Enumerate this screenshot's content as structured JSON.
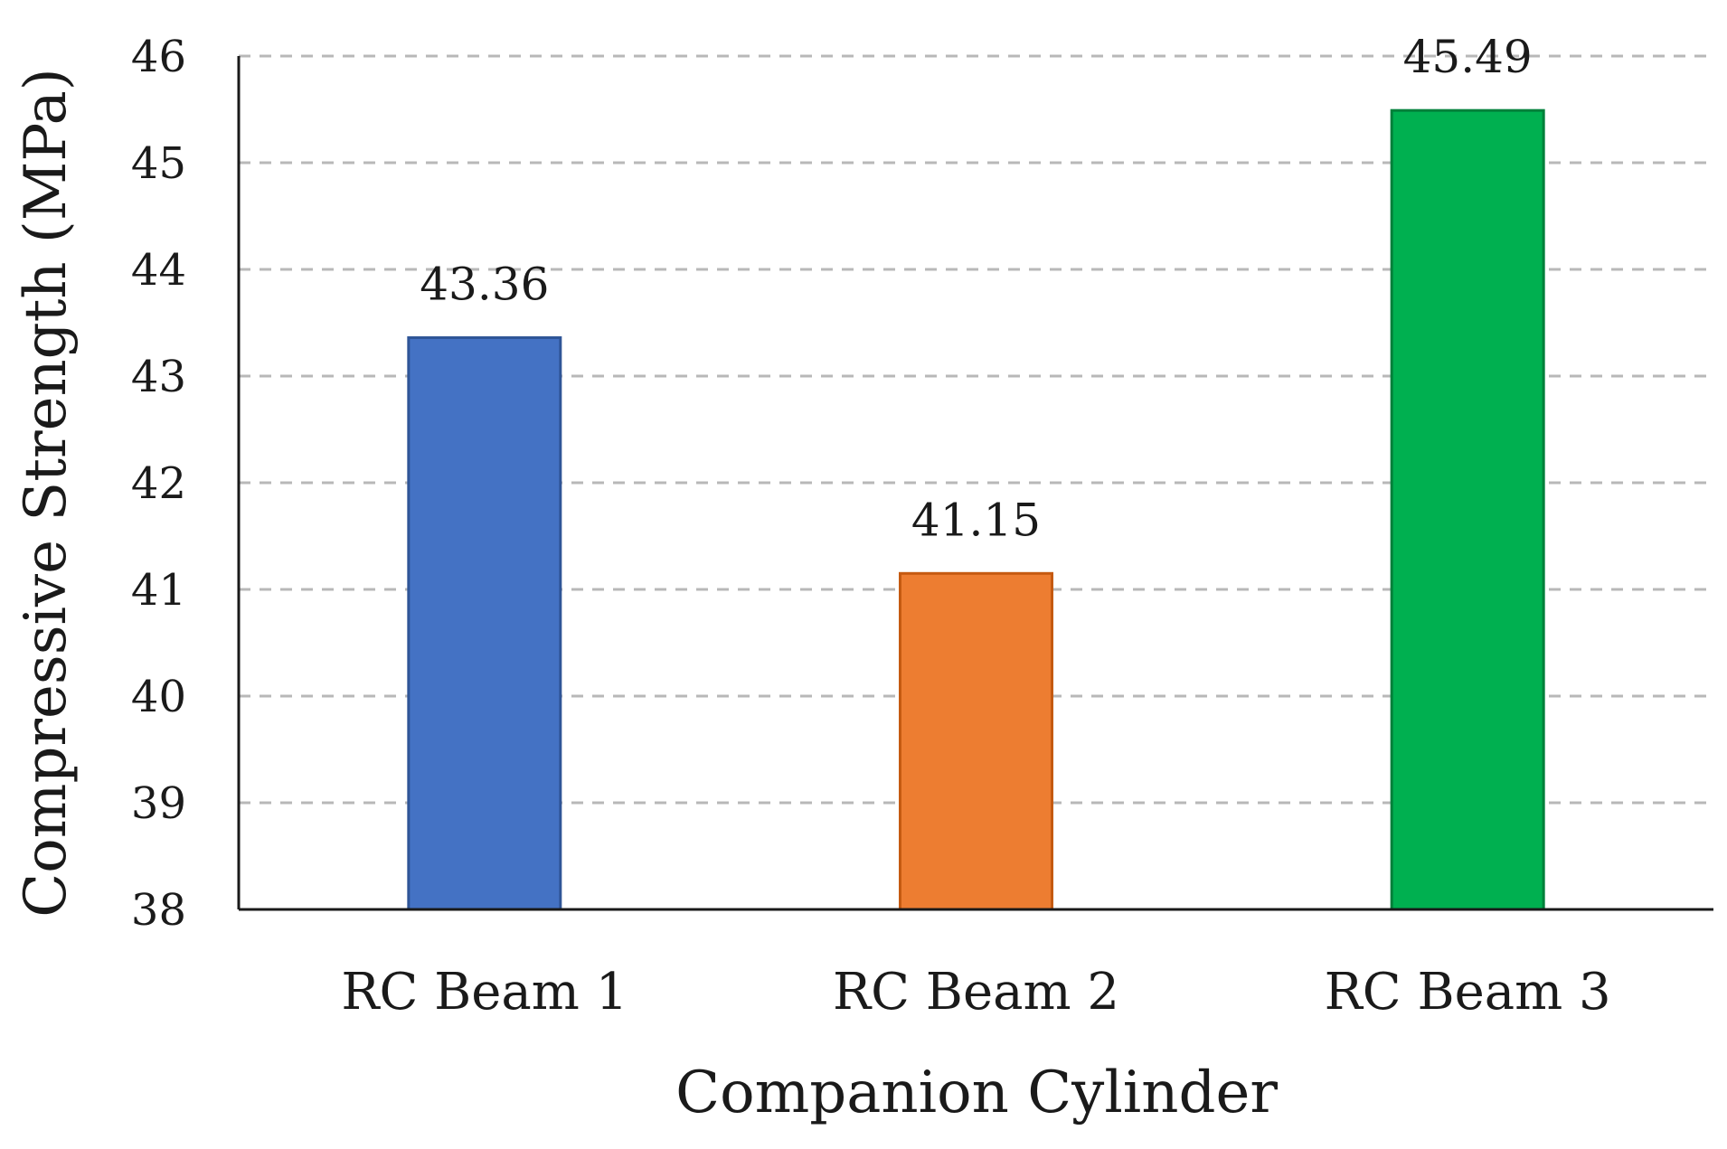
{
  "chart_data": {
    "type": "bar",
    "title": "",
    "xlabel": "Companion Cylinder",
    "ylabel": "Compressive Strength (MPa)",
    "ylim": [
      38,
      46
    ],
    "yticks": [
      38,
      39,
      40,
      41,
      42,
      43,
      44,
      45,
      46
    ],
    "grid": true,
    "categories": [
      "RC Beam 1",
      "RC Beam 2",
      "RC Beam 3"
    ],
    "values": [
      43.36,
      41.15,
      45.49
    ],
    "data_labels": [
      "43.36",
      "41.15",
      "45.49"
    ],
    "colors": [
      "#4472C4",
      "#ED7D31",
      "#00B050"
    ],
    "border_colors": [
      "#2F5597",
      "#C55A11",
      "#00803A"
    ]
  }
}
